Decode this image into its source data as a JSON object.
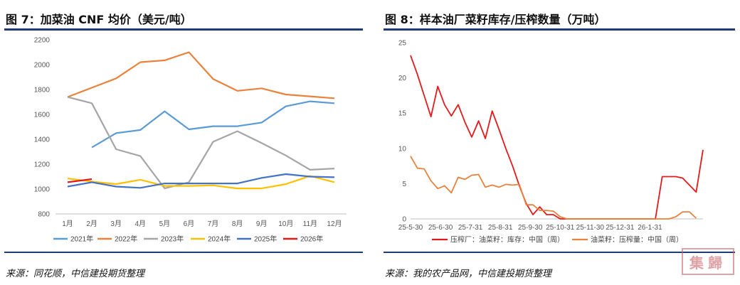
{
  "left": {
    "title": "图 7：加菜油 CNF 均价（美元/吨）",
    "source": "来源：同花顺，中信建投期货整理"
  },
  "right": {
    "title": "图 8：样本油厂菜籽库存/压榨数量（万吨）",
    "source": "来源：我的农产品网，中信建投期货整理"
  },
  "stamp": "集歸",
  "chart_data": [
    {
      "type": "line",
      "title": "加菜油 CNF 均价（美元/吨）",
      "xlabel": "",
      "ylabel": "",
      "categories": [
        "1月",
        "2月",
        "3月",
        "4月",
        "5月",
        "6月",
        "7月",
        "8月",
        "9月",
        "10月",
        "11月",
        "12月"
      ],
      "ylim": [
        800,
        2200
      ],
      "yticks": [
        800,
        1000,
        1200,
        1400,
        1600,
        1800,
        2000,
        2200
      ],
      "legend_position": "bottom",
      "series": [
        {
          "name": "2021年",
          "color": "#5b9bd5",
          "values": [
            null,
            1335,
            1450,
            1475,
            1625,
            1480,
            1505,
            1505,
            1535,
            1665,
            1705,
            1690
          ]
        },
        {
          "name": "2022年",
          "color": "#e8823c",
          "values": [
            1740,
            1815,
            1890,
            2020,
            2035,
            2100,
            1885,
            1790,
            1810,
            1760,
            1745,
            1730
          ]
        },
        {
          "name": "2023年",
          "color": "#a5a5a5",
          "values": [
            1740,
            1690,
            1320,
            1265,
            1005,
            1055,
            1380,
            1465,
            1370,
            1270,
            1155,
            1165
          ]
        },
        {
          "name": "2024年",
          "color": "#ffc000",
          "values": [
            1085,
            1060,
            1040,
            1075,
            1025,
            1025,
            1030,
            1005,
            1005,
            1040,
            1105,
            1055
          ]
        },
        {
          "name": "2025年",
          "color": "#4472c4",
          "values": [
            1020,
            1055,
            1020,
            1010,
            1045,
            1045,
            1045,
            1045,
            1090,
            1120,
            1100,
            1095
          ]
        },
        {
          "name": "2026年",
          "color": "#e31a1c",
          "values": [
            1055,
            1080,
            null,
            null,
            null,
            null,
            null,
            null,
            null,
            null,
            null,
            null
          ]
        }
      ]
    },
    {
      "type": "line",
      "title": "样本油厂菜籽库存/压榨数量（万吨）",
      "xlabel": "",
      "ylabel": "",
      "ylim": [
        0,
        25
      ],
      "yticks": [
        0,
        5,
        10,
        15,
        20,
        25
      ],
      "xticks": [
        "25-5-30",
        "25-6-30",
        "25-7-31",
        "25-8-31",
        "25-9-30",
        "25-10-31",
        "25-11-30",
        "25-12-31",
        "26-1-31"
      ],
      "legend_position": "bottom",
      "series": [
        {
          "name": "压榨厂：油菜籽：库存：中国（周）",
          "color": "#e31a1c",
          "values": [
            23.2,
            20.5,
            17.5,
            14.5,
            18.8,
            16.2,
            14.6,
            16.2,
            13.7,
            11.6,
            13.9,
            11.4,
            15.3,
            12.7,
            10.0,
            7.5,
            4.7,
            2.2,
            0.6,
            1.7,
            0.6,
            0.6,
            0.0,
            0.0,
            0.0,
            0.0,
            0.0,
            0.0,
            0.0,
            0.0,
            0.0,
            0.0,
            0.0,
            0.0,
            0.0,
            0.0,
            0.0,
            6.0,
            6.0,
            6.0,
            5.8,
            4.8,
            3.8,
            9.8
          ]
        },
        {
          "name": "油菜籽：压榨量：中国（周）",
          "color": "#e8823c",
          "values": [
            8.9,
            7.2,
            7.1,
            5.4,
            4.3,
            4.7,
            3.7,
            5.9,
            5.6,
            6.2,
            6.3,
            4.5,
            4.8,
            4.5,
            4.9,
            4.8,
            4.9,
            2.0,
            2.0,
            1.2,
            1.2,
            1.1,
            0.3,
            0.0,
            0.0,
            0.0,
            0.0,
            0.0,
            0.0,
            0.0,
            0.0,
            0.0,
            0.0,
            0.0,
            0.0,
            0.0,
            0.0,
            0.0,
            0.0,
            0.3,
            1.0,
            1.0,
            0.1
          ]
        }
      ]
    }
  ]
}
